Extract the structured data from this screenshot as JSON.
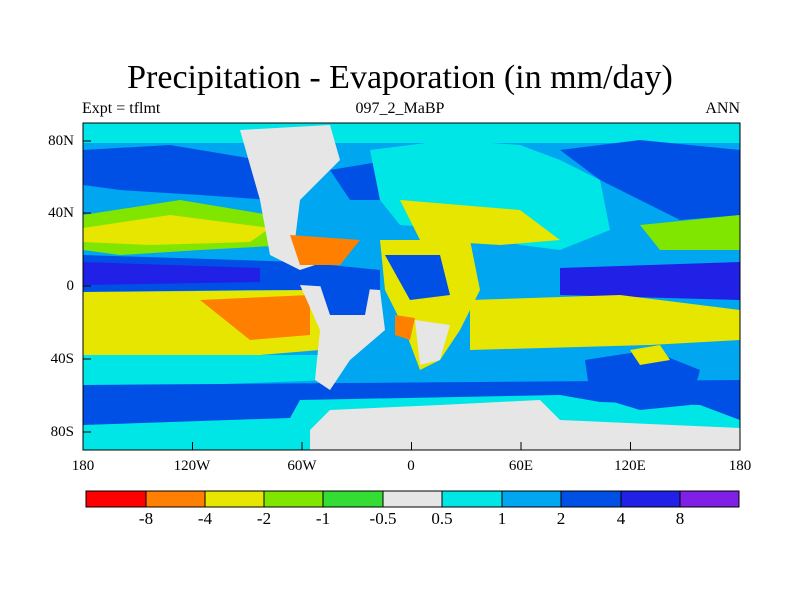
{
  "title": "Precipitation - Evaporation (in mm/day)",
  "subtitle_left": "Expt = tflmt",
  "subtitle_center": "097_2_MaBP",
  "subtitle_right": "ANN",
  "chart_data": {
    "type": "heatmap",
    "projection": "cylindrical-equidistant",
    "title": "Precipitation - Evaporation (in mm/day)",
    "x_ticks": [
      "180",
      "120W",
      "60W",
      "0",
      "60E",
      "120E",
      "180"
    ],
    "y_ticks": [
      "80N",
      "40N",
      "0",
      "40S",
      "80S"
    ],
    "colorbar": {
      "colors": [
        "#ff0000",
        "#ff8000",
        "#e6e600",
        "#80e600",
        "#33dd33",
        "#e6e6e6",
        "#00e6e6",
        "#00a6f0",
        "#0050e6",
        "#2020e6",
        "#8020e6"
      ],
      "labels": [
        "-8",
        "-4",
        "-2",
        "-1",
        "-0.5",
        "0.5",
        "1",
        "2",
        "4",
        "8"
      ]
    }
  }
}
